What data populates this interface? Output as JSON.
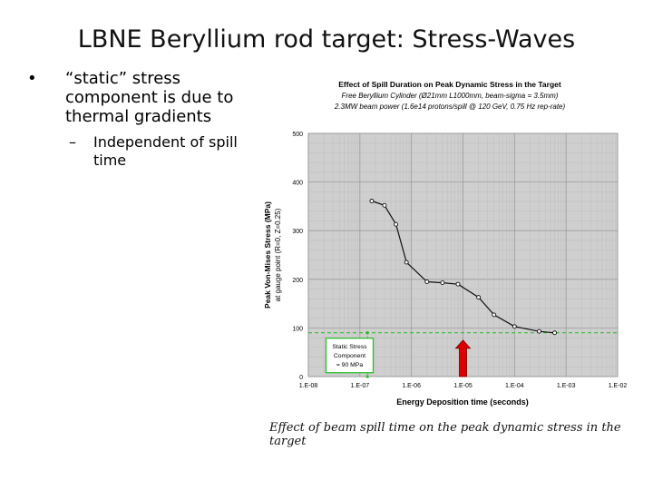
{
  "slide": {
    "title": "LBNE Beryllium rod target: Stress-Waves",
    "bullet_marker": "•",
    "sub_marker": "–",
    "bullet": "“static” stress component is due to thermal gradients",
    "sub_bullet": "Independent of spill time",
    "caption": "Effect of beam spill time on the peak dynamic stress in the target"
  },
  "chart_data": {
    "type": "line",
    "title": "Effect of Spill Duration on Peak Dynamic Stress in the Target",
    "subtitle_1": "Free Beryllium Cylinder (Ø21mm L1000mm, beam-sigma = 3.5mm)",
    "subtitle_2": "2.3MW beam power (1.6e14 protons/spill @ 120 GeV, 0.75 Hz rep-rate)",
    "xlabel": "Energy Deposition time (seconds)",
    "ylabel_1": "Peak Von-Mises Stress (MPa)",
    "ylabel_2": "at gauge point (R=0, Z=0.25)",
    "x_scale": "log",
    "x_ticks": [
      "1.E-08",
      "1.E-07",
      "1.E-06",
      "1.E-05",
      "1.E-04",
      "1.E-03",
      "1.E-02"
    ],
    "y_ticks": [
      "0",
      "100",
      "200",
      "300",
      "400",
      "500"
    ],
    "ylim": [
      0,
      500
    ],
    "xlim": [
      1e-08,
      0.01
    ],
    "grid": true,
    "series": [
      {
        "color": "#111111",
        "x": [
          1.7e-07,
          3e-07,
          5e-07,
          8e-07,
          2e-06,
          4e-06,
          8e-06,
          2e-05,
          4e-05,
          0.0001,
          0.0003,
          0.0006
        ],
        "y": [
          361,
          352,
          313,
          235,
          195,
          193,
          190,
          163,
          127,
          103,
          93,
          90
        ]
      }
    ],
    "static_line": {
      "value": 90,
      "color": "#22bb22"
    },
    "static_box_label": [
      "Static Stress",
      "Component",
      "= 90 MPa"
    ],
    "arrow": {
      "x": 1e-05,
      "color": "#dd0000"
    }
  }
}
